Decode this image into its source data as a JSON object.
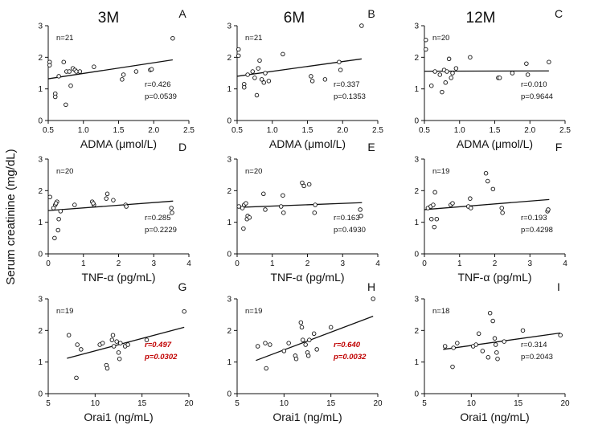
{
  "figure": {
    "shared_ylabel": "Serum creatinine (mg/dL)",
    "column_titles": [
      "3M",
      "6M",
      "12M"
    ]
  },
  "chart_data": [
    {
      "panel": "A",
      "type": "scatter",
      "column": "3M",
      "xlabel": "ADMA (μmol/L)",
      "ylabel": "Serum creatinine (mg/dL)",
      "xlim": [
        0.5,
        2.5
      ],
      "ylim": [
        0,
        3
      ],
      "xticks": [
        "0.5",
        "1.0",
        "1.5",
        "2.0",
        "2.5"
      ],
      "yticks": [
        "0",
        "1",
        "2",
        "3"
      ],
      "n_label": "n=21",
      "r_label": "r=0.426",
      "p_label": "p=0.0539",
      "significant": false,
      "fit": [
        [
          0.5,
          1.32
        ],
        [
          2.27,
          1.92
        ]
      ],
      "points": [
        [
          0.52,
          1.85
        ],
        [
          0.52,
          1.75
        ],
        [
          0.6,
          0.85
        ],
        [
          0.6,
          0.75
        ],
        [
          0.65,
          1.4
        ],
        [
          0.72,
          1.85
        ],
        [
          0.75,
          0.5
        ],
        [
          0.76,
          1.55
        ],
        [
          0.8,
          1.55
        ],
        [
          0.82,
          1.1
        ],
        [
          0.85,
          1.65
        ],
        [
          0.88,
          1.6
        ],
        [
          0.9,
          1.55
        ],
        [
          1.15,
          1.7
        ],
        [
          1.55,
          1.3
        ],
        [
          1.57,
          1.45
        ],
        [
          1.75,
          1.55
        ],
        [
          1.95,
          1.6
        ],
        [
          1.97,
          1.62
        ],
        [
          2.27,
          2.6
        ],
        [
          0.95,
          1.55
        ]
      ]
    },
    {
      "panel": "B",
      "type": "scatter",
      "column": "6M",
      "xlabel": "ADMA (μmol/L)",
      "ylabel": "Serum creatinine (mg/dL)",
      "xlim": [
        0.5,
        2.5
      ],
      "ylim": [
        0,
        3
      ],
      "xticks": [
        "0.5",
        "1.0",
        "1.5",
        "2.0",
        "2.5"
      ],
      "yticks": [
        "0",
        "1",
        "2",
        "3"
      ],
      "n_label": "n=21",
      "r_label": "r=0.337",
      "p_label": "p=0.1353",
      "significant": false,
      "fit": [
        [
          0.5,
          1.4
        ],
        [
          2.27,
          1.95
        ]
      ],
      "points": [
        [
          0.52,
          2.25
        ],
        [
          0.52,
          2.05
        ],
        [
          0.6,
          1.15
        ],
        [
          0.6,
          1.05
        ],
        [
          0.65,
          1.45
        ],
        [
          0.72,
          1.55
        ],
        [
          0.75,
          1.35
        ],
        [
          0.78,
          0.8
        ],
        [
          0.8,
          1.65
        ],
        [
          0.82,
          1.9
        ],
        [
          0.85,
          1.3
        ],
        [
          0.88,
          1.2
        ],
        [
          0.9,
          1.5
        ],
        [
          0.95,
          1.25
        ],
        [
          1.15,
          2.1
        ],
        [
          1.55,
          1.4
        ],
        [
          1.57,
          1.25
        ],
        [
          1.75,
          1.3
        ],
        [
          1.95,
          1.85
        ],
        [
          1.97,
          1.6
        ],
        [
          2.27,
          3.0
        ]
      ]
    },
    {
      "panel": "C",
      "type": "scatter",
      "column": "12M",
      "xlabel": "ADMA (μmol/L)",
      "ylabel": "Serum creatinine (mg/dL)",
      "xlim": [
        0.5,
        2.5
      ],
      "ylim": [
        0,
        3
      ],
      "xticks": [
        "0.5",
        "1.0",
        "1.5",
        "2.0",
        "2.5"
      ],
      "yticks": [
        "0",
        "1",
        "2",
        "3"
      ],
      "n_label": "n=20",
      "r_label": "r=0.010",
      "p_label": "p=0.9644",
      "significant": false,
      "fit": [
        [
          0.5,
          1.56
        ],
        [
          2.27,
          1.57
        ]
      ],
      "points": [
        [
          0.52,
          2.55
        ],
        [
          0.52,
          2.25
        ],
        [
          0.6,
          1.1
        ],
        [
          0.65,
          1.55
        ],
        [
          0.72,
          1.45
        ],
        [
          0.75,
          0.9
        ],
        [
          0.78,
          1.6
        ],
        [
          0.8,
          1.2
        ],
        [
          0.82,
          1.55
        ],
        [
          0.85,
          1.95
        ],
        [
          0.88,
          1.35
        ],
        [
          0.9,
          1.5
        ],
        [
          1.15,
          2.0
        ],
        [
          1.55,
          1.35
        ],
        [
          1.57,
          1.35
        ],
        [
          1.75,
          1.5
        ],
        [
          1.95,
          1.8
        ],
        [
          1.97,
          1.45
        ],
        [
          2.27,
          1.85
        ],
        [
          0.95,
          1.65
        ]
      ]
    },
    {
      "panel": "D",
      "type": "scatter",
      "column": "3M",
      "xlabel": "TNF-α (pg/mL)",
      "ylabel": "Serum creatinine (mg/dL)",
      "xlim": [
        0,
        4
      ],
      "ylim": [
        0,
        3
      ],
      "xticks": [
        "0",
        "1",
        "2",
        "3",
        "4"
      ],
      "yticks": [
        "0",
        "1",
        "2",
        "3"
      ],
      "n_label": "n=20",
      "r_label": "r=0.285",
      "p_label": "p=0.2229",
      "significant": false,
      "fit": [
        [
          0,
          1.37
        ],
        [
          3.55,
          1.67
        ]
      ],
      "points": [
        [
          0.05,
          1.8
        ],
        [
          0.15,
          1.45
        ],
        [
          0.18,
          0.5
        ],
        [
          0.2,
          1.55
        ],
        [
          0.25,
          1.65
        ],
        [
          0.28,
          0.75
        ],
        [
          0.3,
          1.1
        ],
        [
          0.35,
          1.35
        ],
        [
          0.75,
          1.55
        ],
        [
          1.25,
          1.65
        ],
        [
          1.3,
          1.55
        ],
        [
          1.65,
          1.75
        ],
        [
          1.68,
          1.9
        ],
        [
          1.85,
          1.7
        ],
        [
          2.2,
          1.55
        ],
        [
          2.22,
          1.5
        ],
        [
          3.5,
          1.45
        ],
        [
          3.52,
          1.3
        ],
        [
          0.22,
          1.6
        ],
        [
          1.28,
          1.6
        ]
      ]
    },
    {
      "panel": "E",
      "type": "scatter",
      "column": "6M",
      "xlabel": "TNF-α (pg/mL)",
      "ylabel": "Serum creatinine (mg/dL)",
      "xlim": [
        0,
        4
      ],
      "ylim": [
        0,
        3
      ],
      "xticks": [
        "0",
        "1",
        "2",
        "3",
        "4"
      ],
      "yticks": [
        "0",
        "1",
        "2",
        "3"
      ],
      "n_label": "n=20",
      "r_label": "r=0.163",
      "p_label": "p=0.4930",
      "significant": false,
      "fit": [
        [
          0,
          1.47
        ],
        [
          3.55,
          1.62
        ]
      ],
      "points": [
        [
          0.05,
          1.5
        ],
        [
          0.15,
          1.45
        ],
        [
          0.18,
          0.8
        ],
        [
          0.2,
          1.55
        ],
        [
          0.25,
          1.6
        ],
        [
          0.28,
          1.1
        ],
        [
          0.3,
          1.2
        ],
        [
          0.35,
          1.15
        ],
        [
          0.75,
          1.9
        ],
        [
          0.8,
          1.4
        ],
        [
          1.25,
          1.5
        ],
        [
          1.3,
          1.85
        ],
        [
          1.32,
          1.3
        ],
        [
          1.85,
          2.25
        ],
        [
          1.9,
          2.15
        ],
        [
          2.05,
          2.2
        ],
        [
          2.2,
          1.3
        ],
        [
          2.22,
          1.55
        ],
        [
          3.5,
          1.4
        ],
        [
          3.52,
          1.2
        ]
      ]
    },
    {
      "panel": "F",
      "type": "scatter",
      "column": "12M",
      "xlabel": "TNF-α (pg/mL)",
      "ylabel": "Serum creatinine (mg/dL)",
      "xlim": [
        0,
        4
      ],
      "ylim": [
        0,
        3
      ],
      "xticks": [
        "0",
        "1",
        "2",
        "3",
        "4"
      ],
      "yticks": [
        "0",
        "1",
        "2",
        "3"
      ],
      "n_label": "n=19",
      "r_label": "r=0.193",
      "p_label": "p=0.4298",
      "significant": false,
      "fit": [
        [
          0,
          1.4
        ],
        [
          3.55,
          1.72
        ]
      ],
      "points": [
        [
          0.1,
          1.45
        ],
        [
          0.18,
          1.5
        ],
        [
          0.2,
          1.1
        ],
        [
          0.25,
          1.55
        ],
        [
          0.28,
          0.85
        ],
        [
          0.3,
          1.95
        ],
        [
          0.35,
          1.1
        ],
        [
          0.75,
          1.55
        ],
        [
          0.8,
          1.6
        ],
        [
          1.25,
          1.5
        ],
        [
          1.3,
          1.75
        ],
        [
          1.32,
          1.45
        ],
        [
          1.75,
          2.55
        ],
        [
          1.8,
          2.3
        ],
        [
          1.95,
          2.05
        ],
        [
          2.2,
          1.45
        ],
        [
          2.22,
          1.3
        ],
        [
          3.5,
          1.35
        ],
        [
          3.52,
          1.4
        ]
      ]
    },
    {
      "panel": "G",
      "type": "scatter",
      "column": "3M",
      "xlabel": "Orai1 (ng/mL)",
      "ylabel": "Serum creatinine (mg/dL)",
      "xlim": [
        5,
        20
      ],
      "ylim": [
        0,
        3
      ],
      "xticks": [
        "5",
        "10",
        "15",
        "20"
      ],
      "yticks": [
        "0",
        "1",
        "2",
        "3"
      ],
      "n_label": "n=19",
      "r_label": "r=0.497",
      "p_label": "p=0.0302",
      "significant": true,
      "fit": [
        [
          7,
          1.12
        ],
        [
          19.5,
          2.1
        ]
      ],
      "points": [
        [
          7.2,
          1.85
        ],
        [
          8.0,
          0.5
        ],
        [
          8.1,
          1.55
        ],
        [
          8.5,
          1.4
        ],
        [
          10.5,
          1.55
        ],
        [
          10.8,
          1.6
        ],
        [
          11.2,
          0.9
        ],
        [
          11.3,
          0.8
        ],
        [
          11.8,
          1.7
        ],
        [
          11.9,
          1.85
        ],
        [
          12.0,
          1.5
        ],
        [
          12.3,
          1.65
        ],
        [
          12.5,
          1.3
        ],
        [
          12.6,
          1.1
        ],
        [
          12.7,
          1.6
        ],
        [
          13.2,
          1.5
        ],
        [
          13.5,
          1.55
        ],
        [
          15.5,
          1.7
        ],
        [
          19.5,
          2.6
        ]
      ]
    },
    {
      "panel": "H",
      "type": "scatter",
      "column": "6M",
      "xlabel": "Orai1 (ng/mL)",
      "ylabel": "Serum creatinine (mg/dL)",
      "xlim": [
        5,
        20
      ],
      "ylim": [
        0,
        3
      ],
      "xticks": [
        "5",
        "10",
        "15",
        "20"
      ],
      "yticks": [
        "0",
        "1",
        "2",
        "3"
      ],
      "n_label": "n=19",
      "r_label": "r=0.640",
      "p_label": "p=0.0032",
      "significant": true,
      "fit": [
        [
          7,
          1.05
        ],
        [
          19.5,
          2.45
        ]
      ],
      "points": [
        [
          7.2,
          1.5
        ],
        [
          8.0,
          1.6
        ],
        [
          8.1,
          0.8
        ],
        [
          8.5,
          1.55
        ],
        [
          10.0,
          1.35
        ],
        [
          10.5,
          1.6
        ],
        [
          11.2,
          1.2
        ],
        [
          11.3,
          1.1
        ],
        [
          11.8,
          2.25
        ],
        [
          11.9,
          2.1
        ],
        [
          12.0,
          1.7
        ],
        [
          12.3,
          1.55
        ],
        [
          12.5,
          1.3
        ],
        [
          12.6,
          1.2
        ],
        [
          12.7,
          1.7
        ],
        [
          13.2,
          1.9
        ],
        [
          13.5,
          1.4
        ],
        [
          15.0,
          2.1
        ],
        [
          19.5,
          3.0
        ]
      ]
    },
    {
      "panel": "I",
      "type": "scatter",
      "column": "12M",
      "xlabel": "Orai1 (ng/mL)",
      "ylabel": "Serum creatinine (mg/dL)",
      "xlim": [
        5,
        20
      ],
      "ylim": [
        0,
        3
      ],
      "xticks": [
        "5",
        "10",
        "15",
        "20"
      ],
      "yticks": [
        "0",
        "1",
        "2",
        "3"
      ],
      "n_label": "n=18",
      "r_label": "r=0.314",
      "p_label": "p=0.2043",
      "significant": false,
      "fit": [
        [
          7,
          1.4
        ],
        [
          19.5,
          1.92
        ]
      ],
      "points": [
        [
          7.2,
          1.5
        ],
        [
          8.0,
          0.85
        ],
        [
          8.1,
          1.45
        ],
        [
          8.5,
          1.6
        ],
        [
          10.2,
          1.5
        ],
        [
          10.5,
          1.55
        ],
        [
          10.8,
          1.9
        ],
        [
          11.2,
          1.35
        ],
        [
          11.8,
          1.15
        ],
        [
          12.0,
          2.55
        ],
        [
          12.3,
          2.3
        ],
        [
          12.5,
          1.75
        ],
        [
          12.6,
          1.55
        ],
        [
          12.7,
          1.3
        ],
        [
          12.8,
          1.1
        ],
        [
          13.5,
          1.65
        ],
        [
          15.5,
          2.0
        ],
        [
          19.5,
          1.85
        ]
      ]
    }
  ]
}
